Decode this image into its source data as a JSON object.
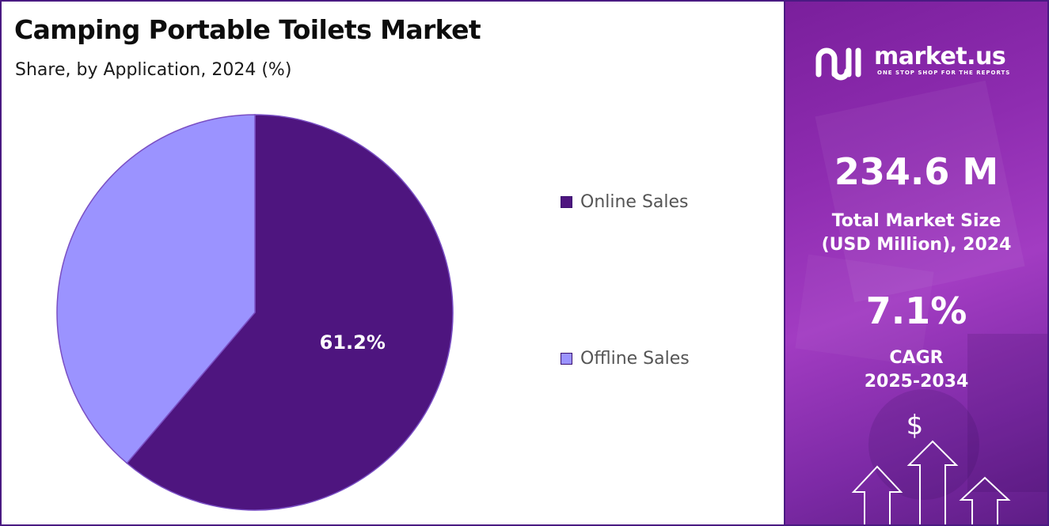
{
  "header": {
    "title": "Camping Portable Toilets Market",
    "subtitle": "Share, by Application, 2024 (%)"
  },
  "chart_data": {
    "type": "pie",
    "start_angle_deg": 0,
    "direction": "clockwise",
    "slices": [
      {
        "name": "Online Sales",
        "value": 61.2,
        "color": "#4e157f",
        "label": "61.2%"
      },
      {
        "name": "Offline Sales",
        "value": 38.8,
        "color": "#9b93ff",
        "label": ""
      }
    ],
    "legend_position": "right"
  },
  "legend": {
    "items": [
      {
        "label": "Online Sales",
        "color": "#4e157f"
      },
      {
        "label": "Offline Sales",
        "color": "#9b93ff"
      }
    ]
  },
  "sidebar": {
    "brand_name": "market.us",
    "brand_tagline": "ONE STOP SHOP FOR THE REPORTS",
    "market_size": "234.6 M",
    "market_size_label_line1": "Total Market Size",
    "market_size_label_line2": "(USD Million), 2024",
    "cagr": "7.1%",
    "cagr_label_line1": "CAGR",
    "cagr_label_line2": "2025-2034",
    "dollar_symbol": "$"
  },
  "colors": {
    "border": "#4a1a82",
    "panel_purple": "#8e2cb0"
  }
}
